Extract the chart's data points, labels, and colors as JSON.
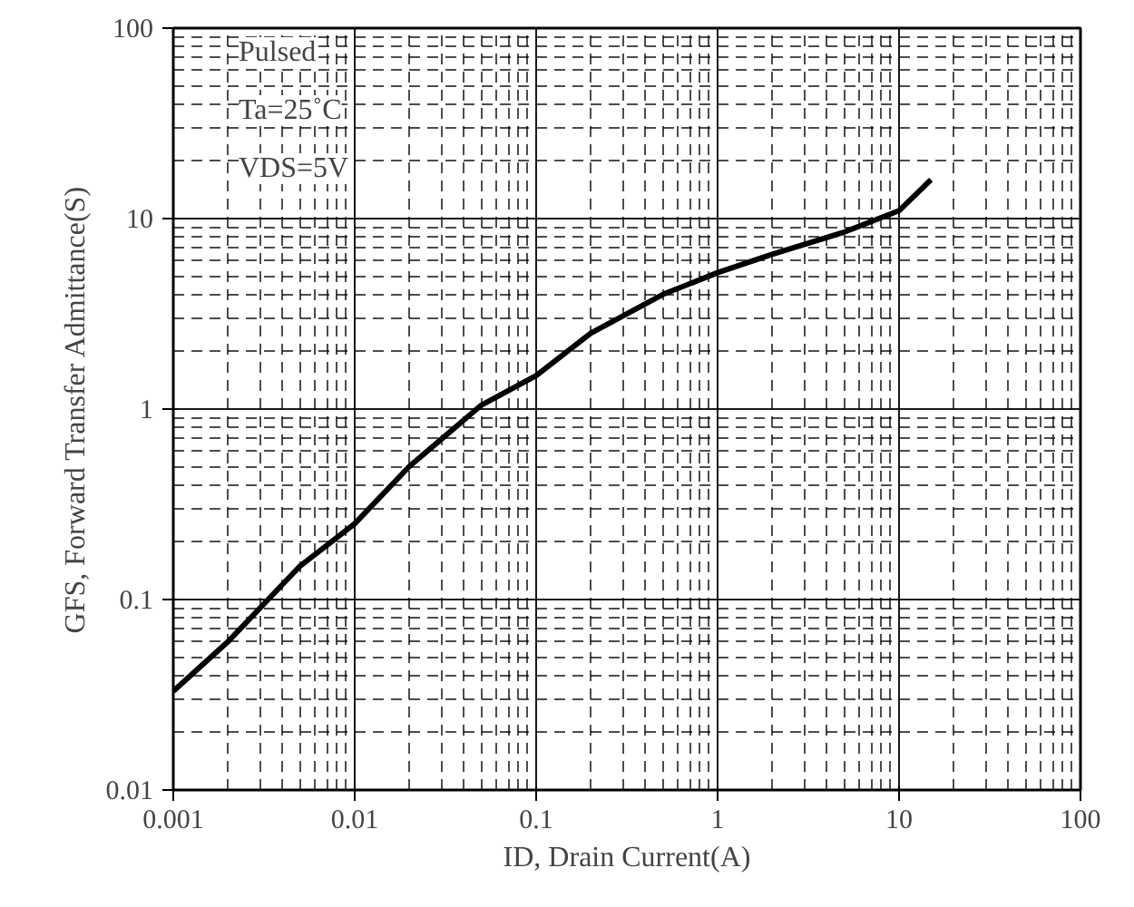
{
  "chart_data": {
    "type": "line",
    "xlabel": "ID, Drain Current(A)",
    "ylabel": "GFS, Forward Transfer Admittance(S)",
    "x": [
      0.001,
      0.002,
      0.005,
      0.01,
      0.02,
      0.05,
      0.1,
      0.2,
      0.5,
      1,
      2,
      5,
      10,
      15
    ],
    "series": [
      {
        "color": "#000000",
        "values": [
          0.033,
          0.06,
          0.15,
          0.25,
          0.5,
          1.05,
          1.5,
          2.5,
          4,
          5.2,
          6.5,
          8.5,
          11,
          16
        ]
      }
    ],
    "log": "xy",
    "xlim": [
      0.001,
      100
    ],
    "ylim": [
      0.01,
      100
    ],
    "xticks": [
      0.001,
      0.01,
      0.1,
      1,
      10,
      100
    ],
    "yticks": [
      0.01,
      0.1,
      1,
      10,
      100
    ],
    "grid": true,
    "marker": "none",
    "line_style": "solid",
    "annotations": [
      "Pulsed",
      "Ta=25˚C",
      "VDS=5V"
    ]
  }
}
